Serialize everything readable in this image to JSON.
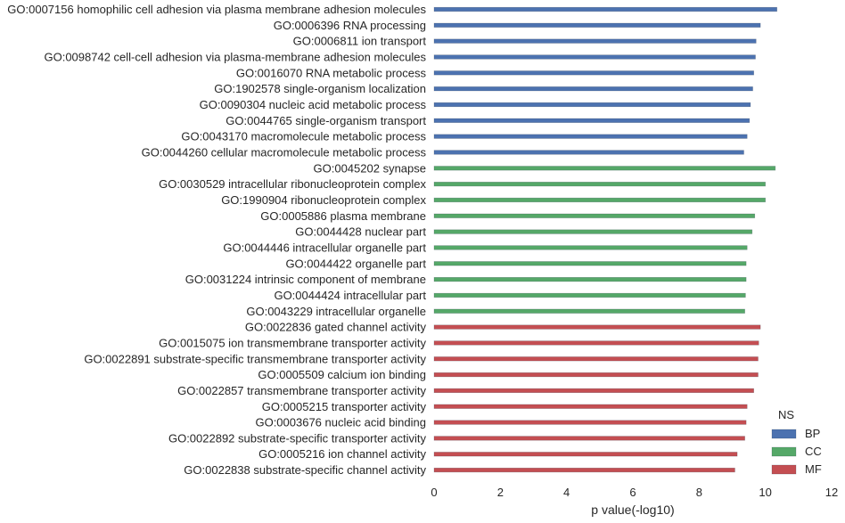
{
  "chart_data": {
    "type": "bar",
    "orientation": "horizontal",
    "xlabel": "p value(-log10)",
    "ylabel": "",
    "title": "",
    "xlim": [
      0,
      12
    ],
    "xticks": [
      "0",
      "2",
      "4",
      "6",
      "8",
      "10",
      "12"
    ],
    "legend": {
      "title": "NS",
      "placement": "bottom-right",
      "entries": [
        {
          "name": "BP",
          "color": "#4c72b0"
        },
        {
          "name": "CC",
          "color": "#55a868"
        },
        {
          "name": "MF",
          "color": "#c44e52"
        }
      ]
    },
    "grid": false,
    "categories": [
      "GO:0007156 homophilic cell adhesion via plasma membrane adhesion molecules",
      "GO:0006396 RNA processing",
      "GO:0006811 ion transport",
      "GO:0098742 cell-cell adhesion via plasma-membrane adhesion molecules",
      "GO:0016070 RNA metabolic process",
      "GO:1902578 single-organism localization",
      "GO:0090304 nucleic acid metabolic process",
      "GO:0044765 single-organism transport",
      "GO:0043170 macromolecule metabolic process",
      "GO:0044260 cellular macromolecule metabolic process",
      "GO:0045202 synapse",
      "GO:0030529 intracellular ribonucleoprotein complex",
      "GO:1990904 ribonucleoprotein complex",
      "GO:0005886 plasma membrane",
      "GO:0044428 nuclear part",
      "GO:0044446 intracellular organelle part",
      "GO:0044422 organelle part",
      "GO:0031224 intrinsic component of membrane",
      "GO:0044424 intracellular part",
      "GO:0043229 intracellular organelle",
      "GO:0022836 gated channel activity",
      "GO:0015075 ion transmembrane transporter activity",
      "GO:0022891 substrate-specific transmembrane transporter activity",
      "GO:0005509 calcium ion binding",
      "GO:0022857 transmembrane transporter activity",
      "GO:0005215 transporter activity",
      "GO:0003676 nucleic acid binding",
      "GO:0022892 substrate-specific transporter activity",
      "GO:0005216 ion channel activity",
      "GO:0022838 substrate-specific channel activity"
    ],
    "series": [
      {
        "name": "BP",
        "color": "#4c72b0",
        "values": [
          10.35,
          9.85,
          9.72,
          9.7,
          9.65,
          9.62,
          9.55,
          9.52,
          9.45,
          9.35,
          null,
          null,
          null,
          null,
          null,
          null,
          null,
          null,
          null,
          null,
          null,
          null,
          null,
          null,
          null,
          null,
          null,
          null,
          null,
          null
        ]
      },
      {
        "name": "CC",
        "color": "#55a868",
        "values": [
          null,
          null,
          null,
          null,
          null,
          null,
          null,
          null,
          null,
          null,
          10.3,
          10.0,
          10.0,
          9.68,
          9.6,
          9.45,
          9.42,
          9.42,
          9.4,
          9.38,
          null,
          null,
          null,
          null,
          null,
          null,
          null,
          null,
          null,
          null
        ]
      },
      {
        "name": "MF",
        "color": "#c44e52",
        "values": [
          null,
          null,
          null,
          null,
          null,
          null,
          null,
          null,
          null,
          null,
          null,
          null,
          null,
          null,
          null,
          null,
          null,
          null,
          null,
          null,
          9.85,
          9.8,
          9.78,
          9.78,
          9.65,
          9.45,
          9.42,
          9.38,
          9.15,
          9.08
        ]
      }
    ]
  }
}
